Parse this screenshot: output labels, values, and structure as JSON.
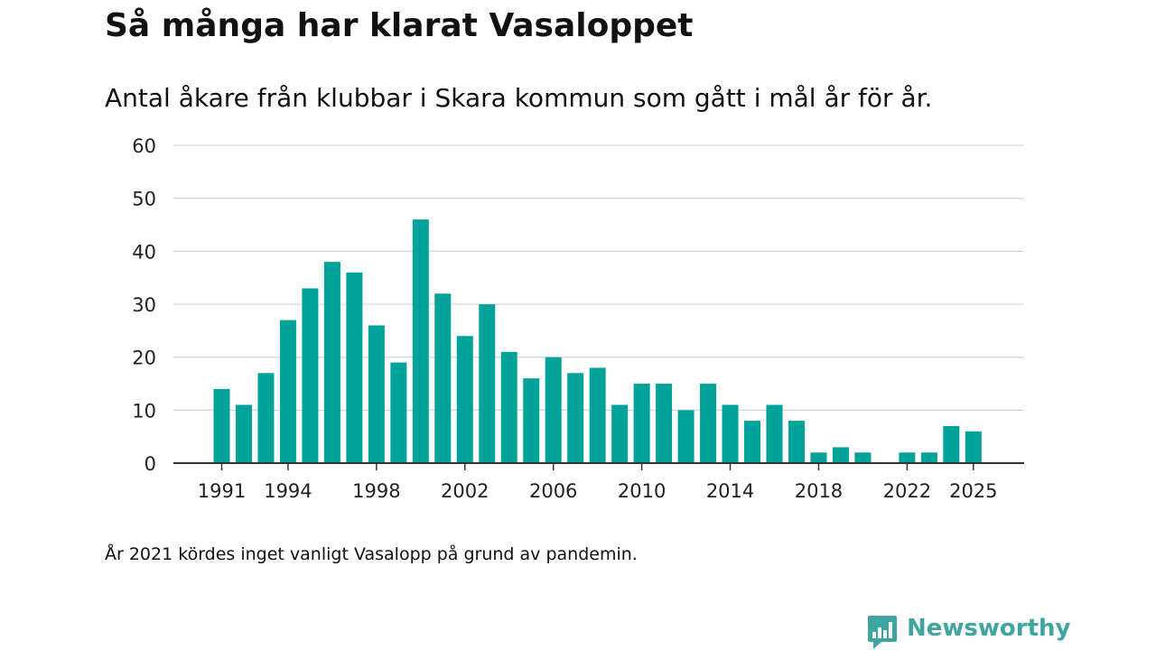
{
  "chart_data": {
    "type": "bar",
    "title": "Så många har klarat Vasaloppet",
    "subtitle": "Antal åkare från klubbar i Skara kommun som gått i mål år för år.",
    "xlabel": "",
    "ylabel": "",
    "ylim": [
      0,
      60
    ],
    "yticks": [
      0,
      10,
      20,
      30,
      40,
      50,
      60
    ],
    "xticks": [
      "1991",
      "1994",
      "1998",
      "2002",
      "2006",
      "2010",
      "2014",
      "2018",
      "2022",
      "2025"
    ],
    "grid": true,
    "categories": [
      "1991",
      "1992",
      "1993",
      "1994",
      "1995",
      "1996",
      "1997",
      "1998",
      "1999",
      "2000",
      "2001",
      "2002",
      "2003",
      "2004",
      "2005",
      "2006",
      "2007",
      "2008",
      "2009",
      "2010",
      "2011",
      "2012",
      "2013",
      "2014",
      "2015",
      "2016",
      "2017",
      "2018",
      "2019",
      "2020",
      "2021",
      "2022",
      "2023",
      "2024",
      "2025"
    ],
    "values": [
      14,
      11,
      17,
      27,
      33,
      38,
      36,
      26,
      19,
      46,
      32,
      24,
      30,
      21,
      16,
      20,
      17,
      18,
      11,
      15,
      15,
      10,
      15,
      11,
      8,
      11,
      8,
      2,
      3,
      2,
      0,
      2,
      2,
      7,
      6
    ],
    "bar_color": "#00a39a",
    "footnote": "År 2021 kördes inget vanligt Vasalopp på grund av pandemin."
  },
  "brand": {
    "name": "Newsworthy",
    "icon": "newsworthy-logo-icon",
    "color": "#3ea5a0"
  }
}
